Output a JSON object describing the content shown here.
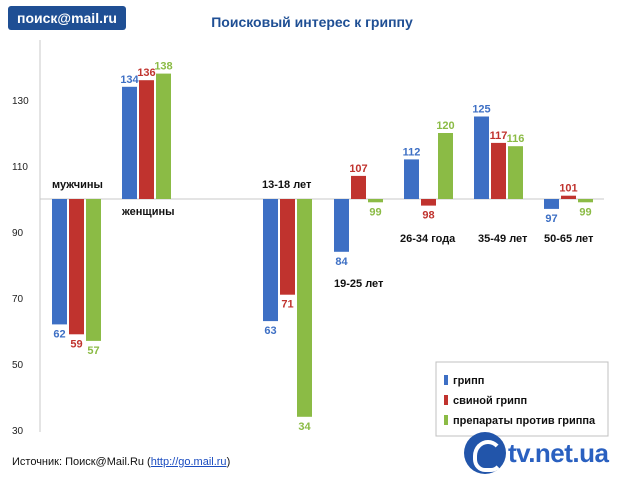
{
  "logo_text": "поиск@mail.ru",
  "chart_data": {
    "type": "bar",
    "title": "Поисковый интерес к гриппу",
    "baseline": 100,
    "ylim": [
      30,
      140
    ],
    "yticks": [
      30,
      50,
      70,
      90,
      110,
      130
    ],
    "categories": [
      "мужчины",
      "женщины",
      "13-18 лет",
      "19-25 лет",
      "26-34 года",
      "35-49 лет",
      "50-65 лет"
    ],
    "series": [
      {
        "name": "грипп",
        "color": "#3d6fc4",
        "values": [
          62,
          134,
          63,
          84,
          112,
          125,
          97
        ]
      },
      {
        "name": "свиной грипп",
        "color": "#c0332e",
        "values": [
          59,
          136,
          71,
          107,
          98,
          117,
          101
        ]
      },
      {
        "name": "препараты против гриппа",
        "color": "#8bbb45",
        "values": [
          57,
          138,
          34,
          99,
          120,
          116,
          99
        ]
      }
    ],
    "legend_position": "bottom-right",
    "grid": false
  },
  "source": {
    "prefix": "Источник: Поиск@Mail.Ru (",
    "link": "http://go.mail.ru",
    "suffix": ")"
  },
  "watermark": "tv.net.ua"
}
